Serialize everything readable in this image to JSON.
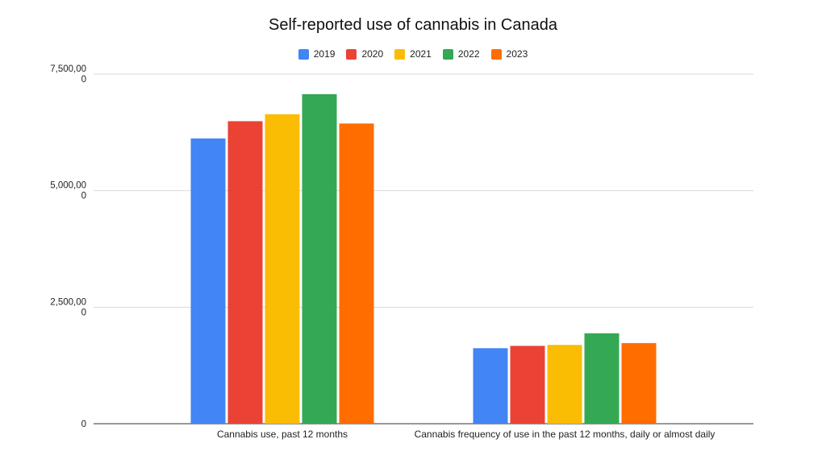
{
  "chart_data": {
    "type": "bar",
    "title": "Self-reported use of cannabis in Canada",
    "xlabel": "",
    "ylabel": "",
    "ylim": [
      0,
      7500000
    ],
    "yticks": [
      {
        "value": 0,
        "label": "0"
      },
      {
        "value": 2500000,
        "label": "2,500,00 0"
      },
      {
        "value": 5000000,
        "label": "5,000,00 0"
      },
      {
        "value": 7500000,
        "label": "7,500,00 0"
      }
    ],
    "categories": [
      "Cannabis use, past 12 months",
      "Cannabis frequency of use in the past 12 months, daily or almost daily"
    ],
    "series": [
      {
        "name": "2019",
        "color": "#4285F4",
        "values": [
          6120000,
          1620000
        ]
      },
      {
        "name": "2020",
        "color": "#EA4335",
        "values": [
          6490000,
          1670000
        ]
      },
      {
        "name": "2021",
        "color": "#FBBC04",
        "values": [
          6640000,
          1690000
        ]
      },
      {
        "name": "2022",
        "color": "#34A853",
        "values": [
          7070000,
          1940000
        ]
      },
      {
        "name": "2023",
        "color": "#FF6D01",
        "values": [
          6440000,
          1730000
        ]
      }
    ],
    "grid": true,
    "legend_position": "top-center"
  }
}
